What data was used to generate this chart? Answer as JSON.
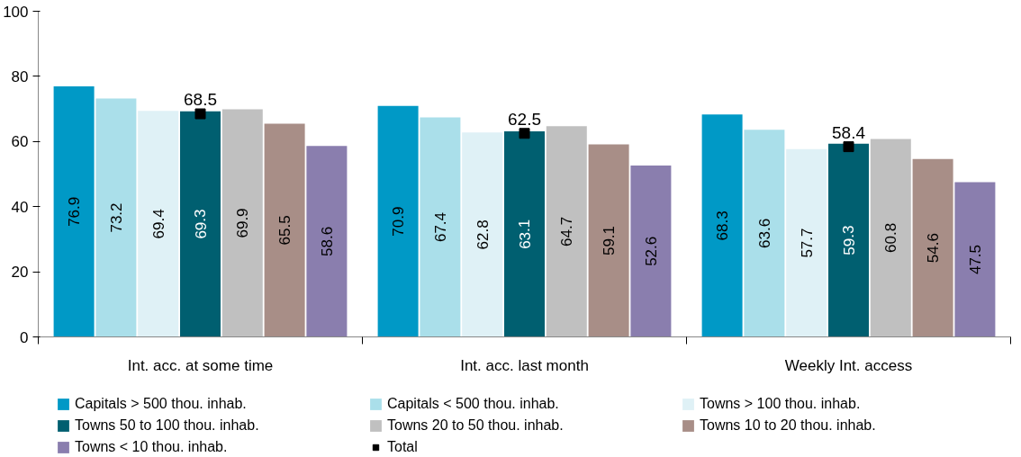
{
  "chart_data": {
    "type": "bar",
    "categories": [
      "Int. acc. at some time",
      "Int. acc. last month",
      "Weekly Int. access"
    ],
    "ylim": [
      0,
      100
    ],
    "yticks": [
      0,
      20,
      40,
      60,
      80,
      100
    ],
    "grid": false,
    "legend": "bottom",
    "data_labels": true,
    "series": [
      {
        "name": "Capitals > 500 thou. inhab.",
        "color": "#0099c6",
        "values": [
          76.9,
          70.9,
          68.3
        ]
      },
      {
        "name": "Capitals < 500 thou. inhab.",
        "color": "#aadfea",
        "values": [
          73.2,
          67.4,
          63.6
        ]
      },
      {
        "name": "Towns > 100 thou. inhab.",
        "color": "#dff1f6",
        "values": [
          69.4,
          62.8,
          57.7
        ]
      },
      {
        "name": "Towns 50 to 100 thou. inhab.",
        "color": "#005f70",
        "values": [
          69.3,
          63.1,
          59.3
        ]
      },
      {
        "name": "Towns 20 to 50 thou. inhab.",
        "color": "#c0c0c0",
        "values": [
          69.9,
          64.7,
          60.8
        ]
      },
      {
        "name": "Towns 10 to 20 thou. inhab.",
        "color": "#a88e87",
        "values": [
          65.5,
          59.1,
          54.6
        ]
      },
      {
        "name": "Towns < 10 thou. inhab.",
        "color": "#8a7eae",
        "values": [
          58.6,
          52.6,
          47.5
        ]
      },
      {
        "name": "Total",
        "type": "scatter",
        "marker": "square",
        "color": "#000000",
        "x": [
          "Int. acc. at some time",
          "Int. acc. last month",
          "Weekly Int. access"
        ],
        "values": [
          68.5,
          62.5,
          58.4
        ]
      }
    ]
  }
}
